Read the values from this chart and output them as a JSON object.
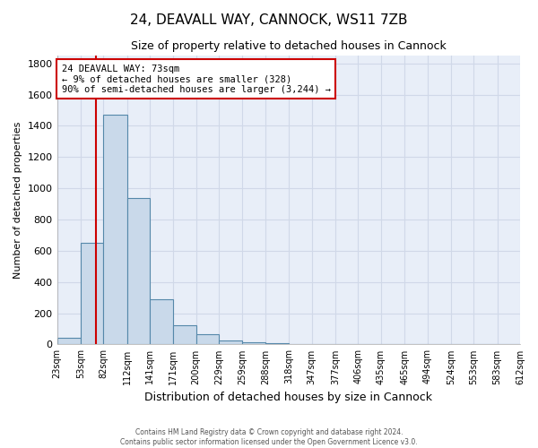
{
  "title1": "24, DEAVALL WAY, CANNOCK, WS11 7ZB",
  "title2": "Size of property relative to detached houses in Cannock",
  "xlabel": "Distribution of detached houses by size in Cannock",
  "ylabel": "Number of detached properties",
  "footer1": "Contains HM Land Registry data © Crown copyright and database right 2024.",
  "footer2": "Contains public sector information licensed under the Open Government Licence v3.0.",
  "bin_edges": [
    23,
    53,
    82,
    112,
    141,
    171,
    200,
    229,
    259,
    288,
    318,
    347,
    377,
    406,
    435,
    465,
    494,
    524,
    553,
    583,
    612
  ],
  "bar_heights": [
    40,
    650,
    1470,
    935,
    290,
    125,
    65,
    25,
    15,
    10,
    5,
    2,
    2,
    1,
    1,
    1,
    0,
    0,
    0,
    0
  ],
  "bar_color": "#c9d9ea",
  "bar_edge_color": "#5588aa",
  "property_sqm": 73,
  "annotation_line1": "24 DEAVALL WAY: 73sqm",
  "annotation_line2": "← 9% of detached houses are smaller (328)",
  "annotation_line3": "90% of semi-detached houses are larger (3,244) →",
  "annotation_box_color": "#ffffff",
  "annotation_border_color": "#cc0000",
  "vline_color": "#cc0000",
  "ylim": [
    0,
    1850
  ],
  "yticks": [
    0,
    200,
    400,
    600,
    800,
    1000,
    1200,
    1400,
    1600,
    1800
  ],
  "bg_color": "#e8eef8",
  "grid_color": "#d0d8e8",
  "title1_fontsize": 11,
  "title2_fontsize": 9,
  "xlabel_fontsize": 9,
  "ylabel_fontsize": 8
}
